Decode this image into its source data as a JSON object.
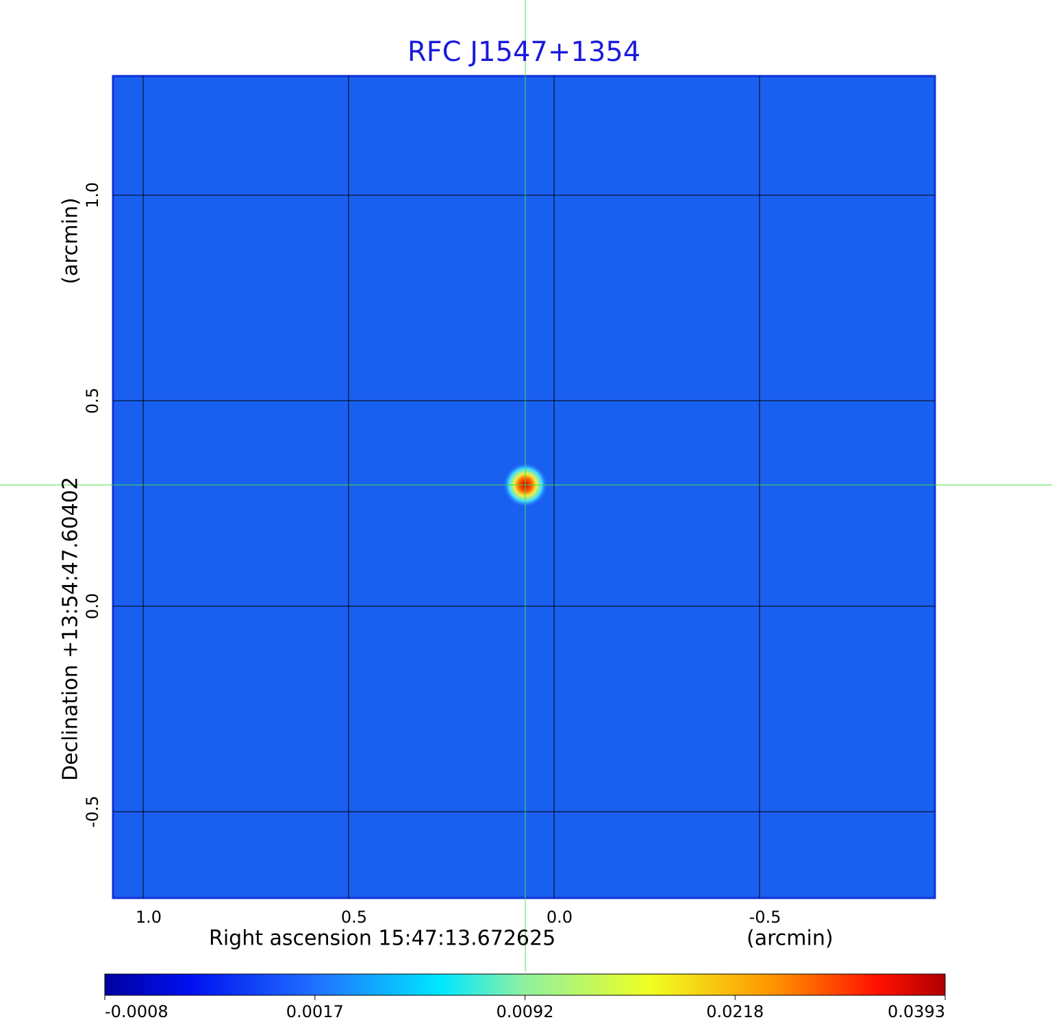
{
  "chart_data": {
    "type": "image",
    "title": "RFC J1547+1354",
    "x_label": "Right ascension  15:47:13.672625",
    "x_unit": "(arcmin)",
    "y_label": "Declination  +13:54:47.60402",
    "y_unit": "(arcmin)",
    "xlim": [
      1.0733,
      -0.9267
    ],
    "ylim": [
      -0.71,
      1.29
    ],
    "xticks": [
      {
        "value": 1,
        "label": "1.0"
      },
      0.5,
      {
        "value": 0,
        "label": "0.0"
      },
      -0.5
    ],
    "yticks": [
      {
        "value": 1,
        "label": "1.0"
      },
      0.5,
      {
        "value": 0,
        "label": "0.0"
      },
      -0.5
    ],
    "grid": true,
    "clim": [
      -0.0008,
      0.0393
    ],
    "colorbar_ticks": [
      -0.0008,
      0.0017,
      0.0092,
      0.0218,
      0.0393
    ]
  }
}
